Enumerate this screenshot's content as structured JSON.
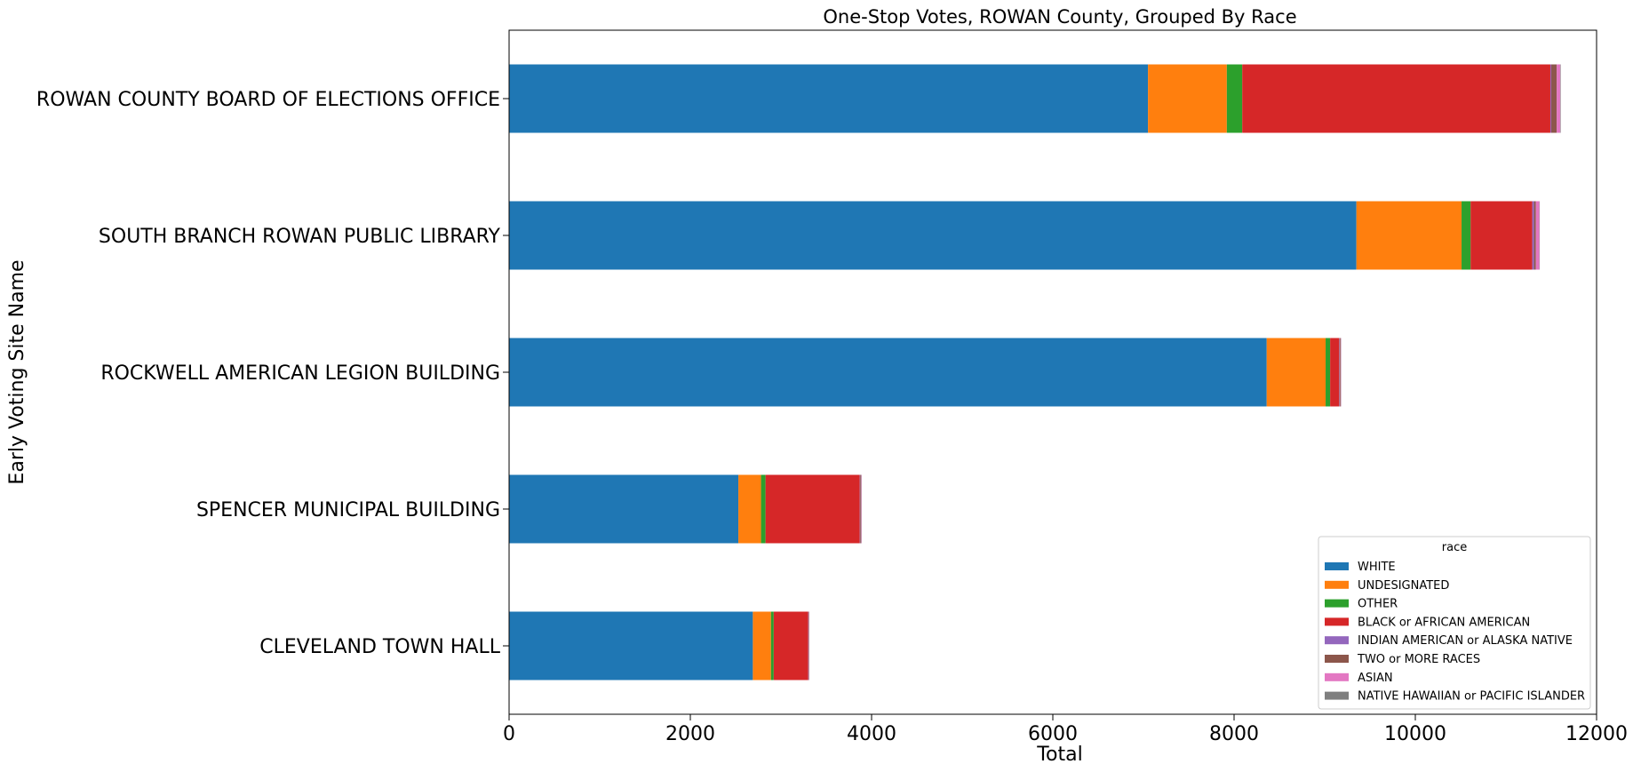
{
  "chart_data": {
    "type": "bar",
    "orientation": "horizontal",
    "stacked": true,
    "title": "One-Stop Votes, ROWAN County, Grouped By Race",
    "xlabel": "Total",
    "ylabel": "Early Voting Site Name",
    "xlim": [
      0,
      12000
    ],
    "xticks": [
      0,
      2000,
      4000,
      6000,
      8000,
      10000,
      12000
    ],
    "grid": false,
    "legend_title": "race",
    "legend_position": "lower-right",
    "categories": [
      "ROWAN COUNTY BOARD OF ELECTIONS OFFICE",
      "SOUTH BRANCH ROWAN PUBLIC LIBRARY",
      "ROCKWELL AMERICAN LEGION BUILDING",
      "SPENCER MUNICIPAL BUILDING",
      "CLEVELAND TOWN HALL"
    ],
    "series": [
      {
        "name": "WHITE",
        "color": "#1f77b4",
        "values": [
          7050,
          9350,
          8360,
          2530,
          2690
        ]
      },
      {
        "name": "UNDESIGNATED",
        "color": "#ff7f0e",
        "values": [
          870,
          1160,
          650,
          250,
          200
        ]
      },
      {
        "name": "OTHER",
        "color": "#2ca02c",
        "values": [
          170,
          100,
          50,
          50,
          30
        ]
      },
      {
        "name": "BLACK or AFRICAN AMERICAN",
        "color": "#d62728",
        "values": [
          3400,
          680,
          100,
          1040,
          380
        ]
      },
      {
        "name": "INDIAN AMERICAN or ALASKA NATIVE",
        "color": "#9467bd",
        "values": [
          10,
          20,
          5,
          5,
          3
        ]
      },
      {
        "name": "TWO or MORE RACES",
        "color": "#8c564b",
        "values": [
          60,
          20,
          10,
          10,
          5
        ]
      },
      {
        "name": "ASIAN",
        "color": "#e377c2",
        "values": [
          40,
          40,
          5,
          5,
          3
        ]
      },
      {
        "name": "NATIVE HAWAIIAN or PACIFIC ISLANDER",
        "color": "#7f7f7f",
        "values": [
          5,
          3,
          2,
          2,
          1
        ]
      }
    ]
  }
}
